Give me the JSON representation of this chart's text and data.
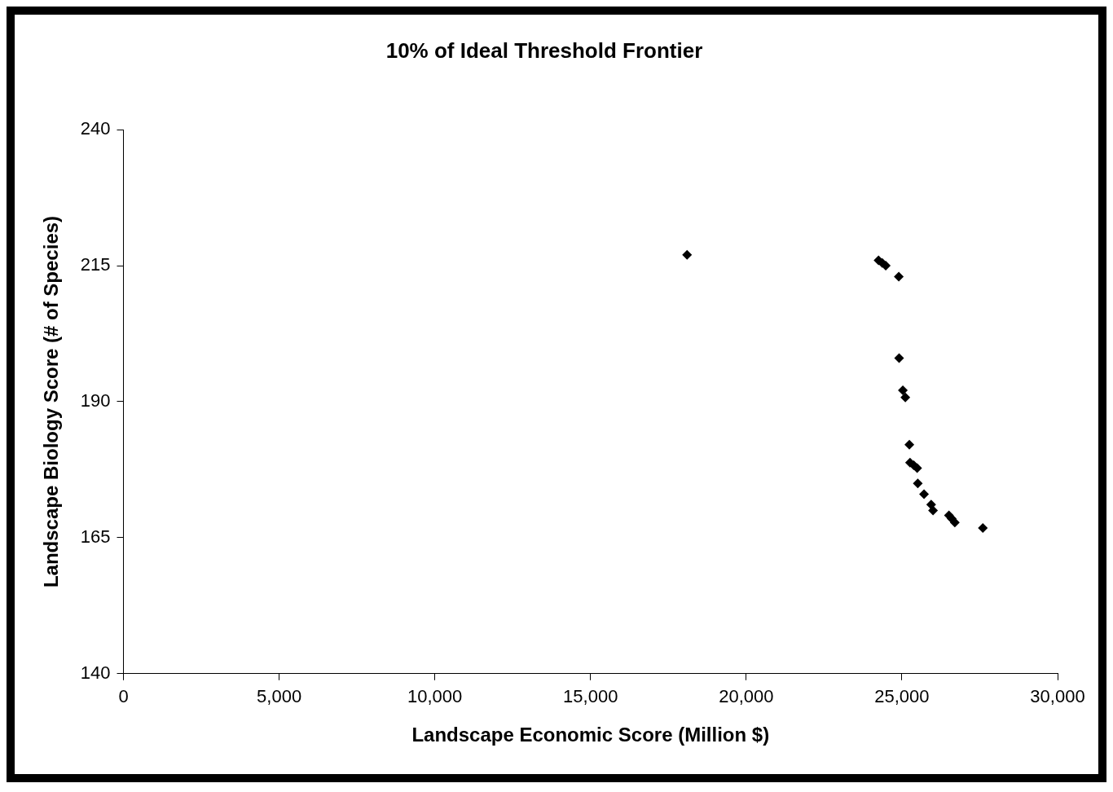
{
  "chart_data": {
    "type": "scatter",
    "title": "10% of Ideal Threshold Frontier",
    "xlabel": "Landscape Economic Score (Million $)",
    "ylabel": "Landscape Biology Score (# of Species)",
    "x": [
      18100,
      24250,
      24370,
      24480,
      24900,
      24910,
      25030,
      25110,
      25240,
      25260,
      25380,
      25490,
      25510,
      25710,
      25940,
      26000,
      26510,
      26600,
      26700,
      27600
    ],
    "series": [
      {
        "color": "#000000",
        "values": [
          217.0,
          216.0,
          215.5,
          215.0,
          213.0,
          198.0,
          192.1,
          190.8,
          182.1,
          178.8,
          178.3,
          177.8,
          175.0,
          173.0,
          171.1,
          170.0,
          169.1,
          168.5,
          167.8,
          166.8
        ]
      }
    ],
    "xlim": [
      0,
      30000
    ],
    "xticks": [
      {
        "value": 0,
        "label": "0"
      },
      {
        "value": 5000,
        "label": "5,000"
      },
      {
        "value": 10000,
        "label": "10,000"
      },
      {
        "value": 15000,
        "label": "15,000"
      },
      {
        "value": 20000,
        "label": "20,000"
      },
      {
        "value": 25000,
        "label": "25,000"
      },
      {
        "value": 30000,
        "label": "30,000"
      }
    ],
    "ylim": [
      140,
      240
    ],
    "yticks": [
      140,
      165,
      190,
      215,
      240
    ],
    "grid": false,
    "legend": false,
    "marker": "diamond"
  }
}
